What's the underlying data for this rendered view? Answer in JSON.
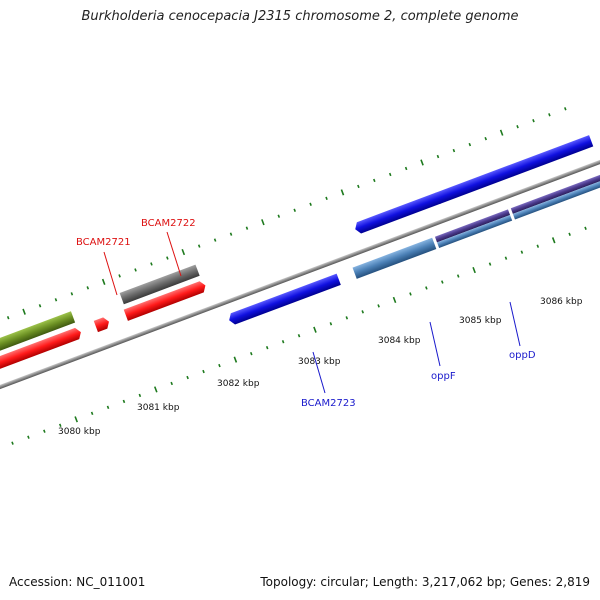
{
  "title": "Burkholderia cenocepacia J2315 chromosome 2, complete genome",
  "footer": {
    "accession": "Accession: NC_011001",
    "info": "Topology: circular; Length: 3,217,062 bp; Genes: 2,819"
  },
  "colors": {
    "backbone": "#8c8c8c",
    "tick": "#1e7a1e",
    "forward_cds": "#1010e0",
    "reverse_cds": "#ff1a1a",
    "gray_feature": "#6a6a6a",
    "olive_feature": "#6b8f23",
    "steel_feature": "#4a7fb5",
    "purple_feature": "#4b3a8c",
    "label_forward": "#1a1acc",
    "label_reverse": "#dd1111"
  },
  "scale": {
    "tick_labels": [
      "3080 kbp",
      "3081 kbp",
      "3082 kbp",
      "3083 kbp",
      "3084 kbp",
      "3085 kbp",
      "3086 kbp"
    ]
  },
  "genes": {
    "bcam2721": "BCAM2721",
    "bcam2722": "BCAM2722",
    "bcam2723": "BCAM2723",
    "oppf": "oppF",
    "oppd": "oppD"
  }
}
